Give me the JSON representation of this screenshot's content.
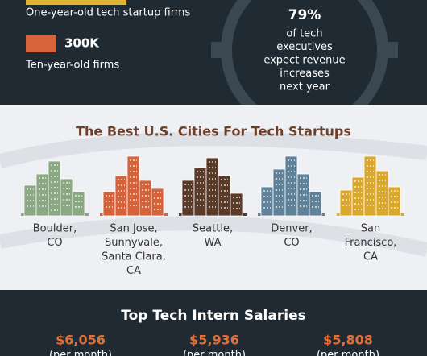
{
  "top": {
    "firms": [
      {
        "label": "One-year-old tech startup firms"
      },
      {
        "value": "300K",
        "label": "Ten-year-old firms"
      }
    ],
    "executives": {
      "percent": "79%",
      "text": [
        "of tech",
        "executives",
        "expect revenue",
        "increases",
        "next year"
      ]
    }
  },
  "cities": {
    "title": "The Best U.S. Cities For Tech Startups",
    "items": [
      {
        "lines": [
          "Boulder,",
          "CO"
        ]
      },
      {
        "lines": [
          "San Jose,",
          "Sunnyvale,",
          "Santa Clara,",
          "CA"
        ]
      },
      {
        "lines": [
          "Seattle,",
          "WA"
        ]
      },
      {
        "lines": [
          "Denver,",
          "CO"
        ]
      },
      {
        "lines": [
          "San",
          "Francisco,",
          "CA"
        ]
      }
    ]
  },
  "salaries": {
    "title": "Top Tech Intern Salaries",
    "items": [
      {
        "amount": "$6,056",
        "unit": "(per month)"
      },
      {
        "amount": "$5,936",
        "unit": "(per month)"
      },
      {
        "amount": "$5,808",
        "unit": "(per month)"
      }
    ]
  }
}
